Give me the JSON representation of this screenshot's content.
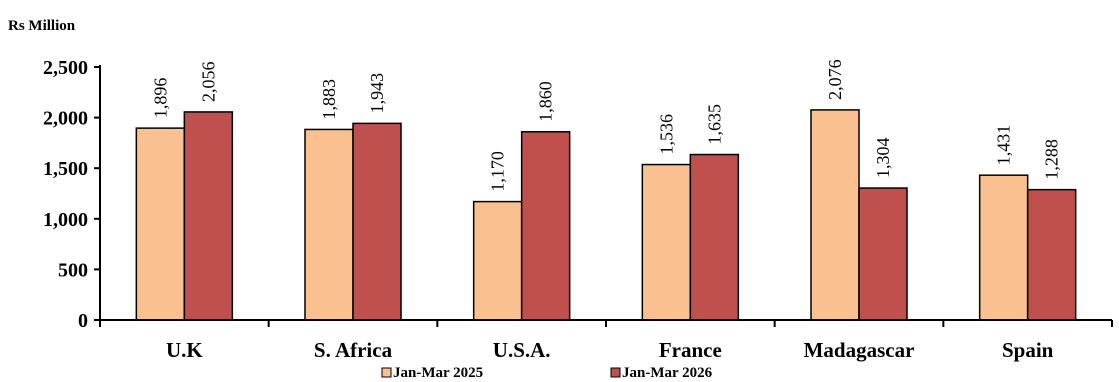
{
  "chart_data": {
    "type": "bar",
    "ylabel": "Rs Million",
    "categories": [
      "U.K",
      "S. Africa",
      "U.S.A.",
      "France",
      "Madagascar",
      "Spain"
    ],
    "series": [
      {
        "name": "Jan-Mar 2025",
        "color": "#FAC090",
        "values": [
          1896,
          1883,
          1170,
          1536,
          2076,
          1431
        ]
      },
      {
        "name": "Jan-Mar 2026",
        "color": "#C0504D",
        "values": [
          2056,
          1943,
          1860,
          1635,
          1304,
          1288
        ]
      }
    ],
    "ylim": [
      0,
      2500
    ],
    "yticks": [
      0,
      500,
      1000,
      1500,
      2000,
      2500
    ],
    "ytick_labels": [
      "0",
      "500",
      "1,000",
      "1,500",
      "2,000",
      "2,500"
    ],
    "data_labels": [
      [
        "1,896",
        "1,883",
        "1,170",
        "1,536",
        "2,076",
        "1,431"
      ],
      [
        "2,056",
        "1,943",
        "1,860",
        "1,635",
        "1,304",
        "1,288"
      ]
    ],
    "grid": false,
    "legend_position": "bottom"
  }
}
